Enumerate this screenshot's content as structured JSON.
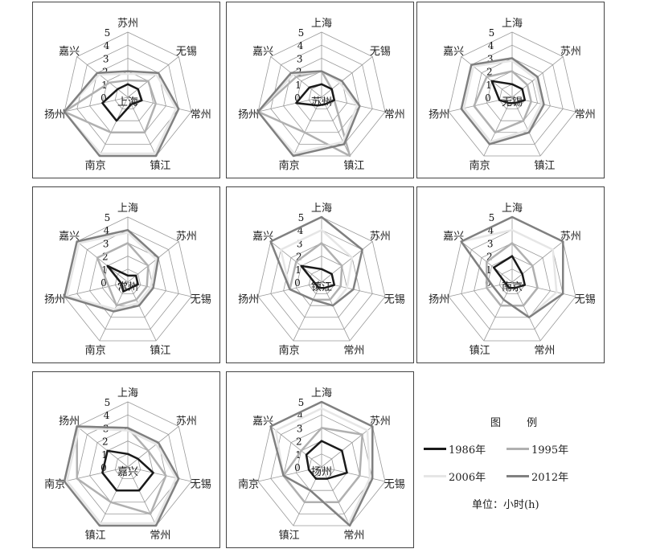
{
  "chart_data": {
    "type": "radar",
    "rlim": [
      0,
      5
    ],
    "ticks": [
      "0",
      "1",
      "2",
      "3",
      "4",
      "5"
    ],
    "legend": {
      "title": "图  例",
      "unit": "单位：小时(h)",
      "series": [
        {
          "name": "1986年",
          "color": "#1a1a1a"
        },
        {
          "name": "1995年",
          "color": "#b0b0b0"
        },
        {
          "name": "2006年",
          "color": "#e6e6e6"
        },
        {
          "name": "2012年",
          "color": "#808080"
        }
      ]
    },
    "charts": [
      {
        "center": "上海",
        "axes": [
          "苏州",
          "无锡",
          "常州",
          "镇江",
          "南京",
          "扬州",
          "嘉兴"
        ],
        "series": [
          [
            1,
            1,
            1.1,
            0.6,
            2,
            2,
            1
          ],
          [
            1.3,
            2,
            2.2,
            3,
            3,
            5,
            1.8
          ],
          [
            1.8,
            2.8,
            3.8,
            4.8,
            4.8,
            5,
            2.8
          ],
          [
            2,
            3,
            4,
            5,
            5,
            5,
            3
          ]
        ]
      },
      {
        "center": "苏州",
        "axes": [
          "上海",
          "无锡",
          "常州",
          "镇江",
          "南京",
          "扬州",
          "嘉兴"
        ],
        "series": [
          [
            1,
            1,
            1,
            0.6,
            0.7,
            2,
            1.2
          ],
          [
            2,
            1,
            1,
            5,
            3,
            5,
            2.5
          ],
          [
            2,
            1.8,
            2.8,
            3.8,
            4.8,
            5,
            2.8
          ],
          [
            2,
            2,
            3,
            4,
            5,
            5,
            3
          ]
        ]
      },
      {
        "center": "无锡",
        "axes": [
          "上海",
          "苏州",
          "常州",
          "镇江",
          "南京",
          "扬州",
          "嘉兴"
        ],
        "series": [
          [
            1,
            1,
            1,
            0.5,
            0.5,
            1,
            2
          ],
          [
            2,
            1.5,
            1.5,
            2,
            3,
            3,
            2.5
          ],
          [
            2.8,
            2.3,
            2.3,
            2.8,
            3.8,
            3.8,
            3.8
          ],
          [
            3,
            2.5,
            2.5,
            3,
            4,
            4,
            4
          ]
        ]
      },
      {
        "center": "常州",
        "axes": [
          "上海",
          "苏州",
          "无锡",
          "镇江",
          "南京",
          "扬州",
          "嘉兴"
        ],
        "series": [
          [
            0.5,
            0.8,
            0.8,
            0.5,
            0.8,
            0.5,
            2
          ],
          [
            3,
            2,
            1.5,
            1.5,
            2,
            1.5,
            3
          ],
          [
            3.8,
            2.8,
            1.8,
            1.8,
            2.3,
            4.8,
            4.8
          ],
          [
            4,
            3,
            2,
            2,
            2.5,
            5,
            5
          ]
        ]
      },
      {
        "center": "镇江",
        "axes": [
          "上海",
          "苏州",
          "无锡",
          "常州",
          "南京",
          "扬州",
          "嘉兴"
        ],
        "series": [
          [
            1,
            1,
            1,
            0.5,
            0.5,
            0.5,
            2
          ],
          [
            3,
            2,
            1.5,
            1.5,
            1.5,
            2.5,
            2.5
          ],
          [
            4,
            3,
            2,
            2,
            1.5,
            2.5,
            4
          ],
          [
            5,
            4,
            2.5,
            2,
            1.5,
            2.5,
            5
          ]
        ]
      },
      {
        "center": "南京",
        "axes": [
          "上海",
          "苏州",
          "无锡",
          "常州",
          "镇江",
          "扬州",
          "嘉兴"
        ],
        "series": [
          [
            2,
            1,
            1,
            0.5,
            0.5,
            0.5,
            1.8
          ],
          [
            3,
            2,
            2,
            2,
            2,
            2,
            2.5
          ],
          [
            4,
            4,
            3.5,
            3,
            1.5,
            1.5,
            5
          ],
          [
            5,
            5,
            4,
            3,
            1.5,
            1.5,
            5
          ]
        ]
      },
      {
        "center": "嘉兴",
        "axes": [
          "上海",
          "苏州",
          "无锡",
          "常州",
          "镇江",
          "南京",
          "扬州"
        ],
        "series": [
          [
            1,
            1,
            2,
            2,
            2,
            2,
            2
          ],
          [
            3,
            2,
            3,
            4,
            3,
            4,
            5
          ],
          [
            2.8,
            2.8,
            3.8,
            4.8,
            4.8,
            4.8,
            4.8
          ],
          [
            3,
            3,
            4,
            5,
            5,
            5,
            5
          ]
        ]
      },
      {
        "center": "扬州",
        "axes": [
          "上海",
          "苏州",
          "无锡",
          "常州",
          "镇江",
          "南京",
          "嘉兴"
        ],
        "series": [
          [
            2,
            2,
            2,
            1,
            1,
            1,
            1.5
          ],
          [
            3,
            4,
            3,
            3,
            3,
            3,
            2
          ],
          [
            4.5,
            4.5,
            3.8,
            4.8,
            2,
            3,
            4.5
          ],
          [
            5,
            5,
            4,
            5,
            2,
            3,
            5
          ]
        ]
      }
    ]
  }
}
